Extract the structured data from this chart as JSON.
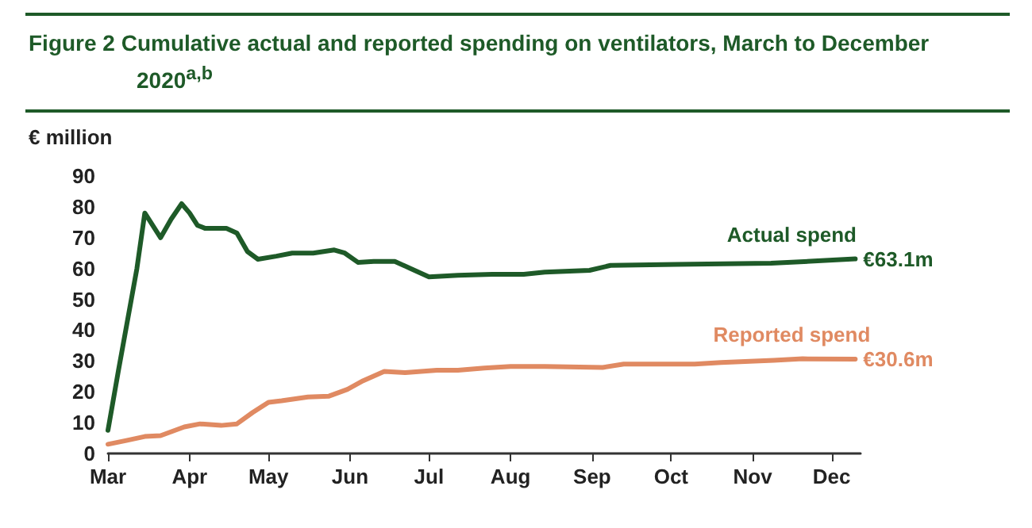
{
  "chart_data": {
    "type": "line",
    "title": "Figure 2  Cumulative actual and reported spending on ventilators, March to December 2020$^{a,b}$",
    "ylabel": "€ million",
    "xlim": [
      "2020-03-01",
      "2020-12-12"
    ],
    "xticks": [
      {
        "value": "2020-03-01",
        "label": "Mar"
      },
      {
        "value": "2020-04-01",
        "label": "Apr"
      },
      {
        "value": "2020-05-01",
        "label": "May"
      },
      {
        "value": "2020-06-01",
        "label": "Jun"
      },
      {
        "value": "2020-07-01",
        "label": "Jul"
      },
      {
        "value": "2020-08-01",
        "label": "Aug"
      },
      {
        "value": "2020-09-01",
        "label": "Sep"
      },
      {
        "value": "2020-10-01",
        "label": "Oct"
      },
      {
        "value": "2020-11-01",
        "label": "Nov"
      },
      {
        "value": "2020-12-01",
        "label": "Dec"
      }
    ],
    "ylim": [
      0,
      90
    ],
    "yticks": [
      0,
      10,
      20,
      30,
      40,
      50,
      60,
      70,
      80,
      90
    ],
    "grid": false,
    "legend": false,
    "marker": "none",
    "line_style": "solid",
    "series": [
      {
        "name": "Actual spend",
        "color": "#1e5a28",
        "x": [
          "2020-03-01",
          "2020-03-05",
          "2020-03-12",
          "2020-03-15",
          "2020-03-21",
          "2020-03-25",
          "2020-03-29",
          "2020-04-01",
          "2020-04-04",
          "2020-04-07",
          "2020-04-15",
          "2020-04-19",
          "2020-04-23",
          "2020-04-27",
          "2020-05-04",
          "2020-05-10",
          "2020-05-18",
          "2020-05-26",
          "2020-05-30",
          "2020-06-04",
          "2020-06-10",
          "2020-06-18",
          "2020-06-24",
          "2020-07-01",
          "2020-07-12",
          "2020-07-25",
          "2020-08-06",
          "2020-08-14",
          "2020-08-31",
          "2020-09-08",
          "2020-10-03",
          "2020-11-08",
          "2020-12-10"
        ],
        "values": [
          7.5,
          27,
          60,
          78,
          70,
          76,
          81,
          78,
          74,
          73,
          73,
          71.5,
          65.5,
          63,
          64,
          65,
          65,
          66,
          65,
          62,
          62.3,
          62.3,
          60,
          57.3,
          57.8,
          58.1,
          58.1,
          58.8,
          59.4,
          61,
          61.3,
          61.7,
          63.1
        ],
        "value_labels": [
          null,
          null,
          null,
          null,
          null,
          null,
          null,
          null,
          null,
          null,
          null,
          null,
          null,
          null,
          null,
          null,
          null,
          null,
          null,
          null,
          null,
          null,
          null,
          null,
          null,
          null,
          null,
          null,
          null,
          null,
          null,
          null,
          "€63.1m"
        ]
      },
      {
        "name": "Reported spend",
        "color": "#e08a62",
        "x": [
          "2020-03-01",
          "2020-03-08",
          "2020-03-15",
          "2020-03-21",
          "2020-03-30",
          "2020-04-05",
          "2020-04-13",
          "2020-04-19",
          "2020-04-25",
          "2020-05-01",
          "2020-05-06",
          "2020-05-16",
          "2020-05-24",
          "2020-05-31",
          "2020-06-06",
          "2020-06-14",
          "2020-06-22",
          "2020-07-04",
          "2020-07-12",
          "2020-07-22",
          "2020-08-01",
          "2020-08-14",
          "2020-09-05",
          "2020-09-13",
          "2020-10-10",
          "2020-10-20",
          "2020-11-09",
          "2020-11-20",
          "2020-12-10"
        ],
        "values": [
          3,
          4.2,
          5.5,
          5.8,
          8.6,
          9.6,
          9.1,
          9.6,
          13.3,
          16.6,
          17.1,
          18.3,
          18.6,
          20.8,
          23.6,
          26.6,
          26.2,
          27,
          27,
          27.7,
          28.2,
          28.2,
          27.9,
          29,
          29,
          29.5,
          30.2,
          30.7,
          30.6
        ],
        "value_labels": [
          null,
          null,
          null,
          null,
          null,
          null,
          null,
          null,
          null,
          null,
          null,
          null,
          null,
          null,
          null,
          null,
          null,
          null,
          null,
          null,
          null,
          null,
          null,
          null,
          null,
          null,
          null,
          null,
          "€30.6m"
        ]
      }
    ]
  }
}
